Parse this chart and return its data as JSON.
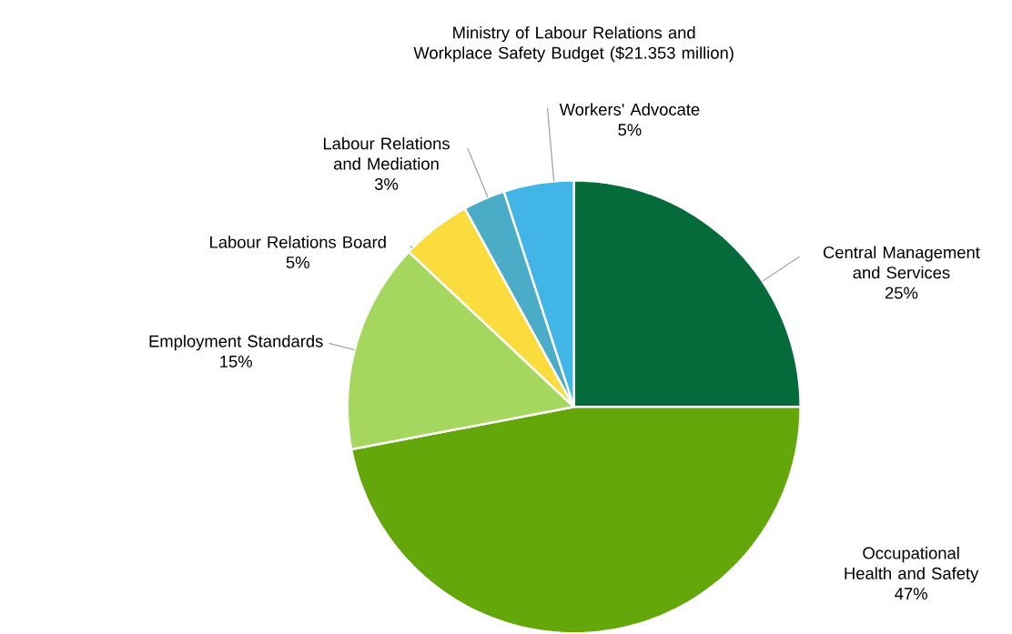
{
  "chart_data": {
    "type": "pie",
    "title": "Ministry of Labour Relations and Workplace Safety Budget ($21.353 million)",
    "categories": [
      "Central Management and Services",
      "Occupational Health and Safety",
      "Employment Standards",
      "Labour Relations Board",
      "Labour Relations and Mediation",
      "Workers' Advocate"
    ],
    "values": [
      25,
      47,
      15,
      5,
      3,
      5
    ],
    "colors": [
      "#056b3a",
      "#63a70a",
      "#a5d65e",
      "#fbdc3e",
      "#4aacc6",
      "#41b6e6"
    ],
    "value_labels": [
      "25%",
      "47%",
      "15%",
      "5%",
      "3%",
      "5%"
    ],
    "legend": false
  }
}
